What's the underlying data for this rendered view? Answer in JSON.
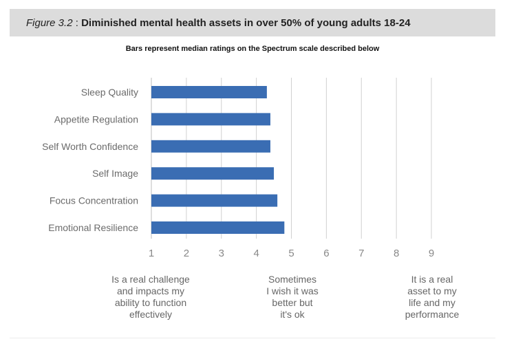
{
  "header": {
    "figure_label": "Figure 3.2",
    "separator": ":",
    "title": "Diminished mental health assets in over 50% of young adults 18-24"
  },
  "colors": {
    "bar": "#3a6db3",
    "header_bg": "#dcdcdc",
    "grid": "#d0d0d0",
    "tick_text": "#888888",
    "label_text": "#6b6b6b"
  },
  "chart_data": {
    "type": "bar",
    "orientation": "horizontal",
    "title": "Bars represent median ratings on the Spectrum scale described below",
    "categories": [
      "Sleep Quality",
      "Appetite Regulation",
      "Self Worth Confidence",
      "Self Image",
      "Focus Concentration",
      "Emotional Resilience"
    ],
    "values": [
      4.3,
      4.4,
      4.4,
      4.5,
      4.6,
      4.8
    ],
    "xlim": [
      1,
      9
    ],
    "xticks": [
      "1",
      "2",
      "3",
      "4",
      "5",
      "6",
      "7",
      "8",
      "9"
    ],
    "grid": true,
    "xlabel": "",
    "ylabel": ""
  },
  "scale_descriptions": {
    "low": [
      "Is a real challenge",
      "and impacts my",
      "ability to function",
      "effectively"
    ],
    "mid": [
      "Sometimes",
      "I wish it was",
      "better but",
      "it's ok"
    ],
    "high": [
      "It is a real",
      "asset to my",
      "life and my",
      "performance"
    ]
  }
}
